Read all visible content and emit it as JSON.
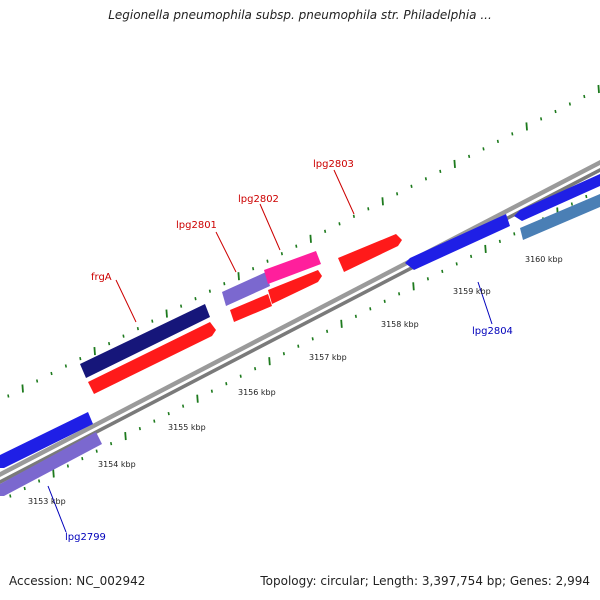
{
  "title": "Legionella pneumophila subsp. pneumophila str. Philadelphia ...",
  "footer": {
    "accession": "Accession: NC_002942",
    "summary": "Topology: circular; Length: 3,397,754 bp; Genes: 2,994"
  },
  "colors": {
    "backbone": "#8a8a8a",
    "tick": "#1d7a1d",
    "forward_label": "#cc0000",
    "reverse_label": "#0000bb"
  },
  "scale_labels": [
    "3153 kbp",
    "3154 kbp",
    "3155 kbp",
    "3156 kbp",
    "3157 kbp",
    "3158 kbp",
    "3159 kbp",
    "3160 kbp"
  ],
  "genes": [
    {
      "name": "lpg2799",
      "strand": "reverse"
    },
    {
      "name": "frgA",
      "strand": "forward"
    },
    {
      "name": "lpg2801",
      "strand": "forward"
    },
    {
      "name": "lpg2802",
      "strand": "forward"
    },
    {
      "name": "lpg2803",
      "strand": "forward"
    },
    {
      "name": "lpg2804",
      "strand": "reverse"
    }
  ]
}
